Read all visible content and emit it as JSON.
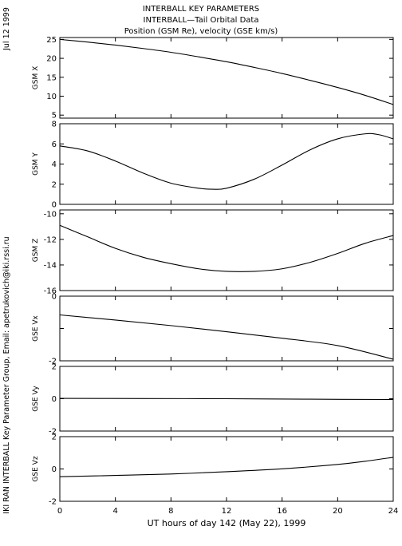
{
  "header": {
    "line1": "INTERBALL KEY PARAMETERS",
    "line2": "INTERBALL—Tail Orbital Data",
    "line3": "Position (GSM Re), velocity (GSE km/s)"
  },
  "side": {
    "date": "Jul 12 1999",
    "credit": "IKI RAN INTERBALL Key Parameter Group, Email: apetrukovich@iki.rssi.ru"
  },
  "chart_data": {
    "type": "line",
    "xlabel": "UT hours of day 142 (May 22), 1999",
    "xlim": [
      0,
      24
    ],
    "xticks": [
      "0",
      "4",
      "8",
      "12",
      "16",
      "20",
      "24"
    ],
    "panels": [
      {
        "ylabel": "GSM X",
        "ylim": [
          4.2,
          25.5
        ],
        "yticks": [
          "25",
          "20",
          "15",
          "10",
          "5"
        ],
        "x": [
          0,
          2,
          4,
          6,
          8,
          10,
          12,
          14,
          16,
          18,
          20,
          22,
          24
        ],
        "y": [
          25.0,
          24.3,
          23.5,
          22.6,
          21.6,
          20.4,
          19.1,
          17.6,
          16.0,
          14.2,
          12.3,
          10.2,
          7.8
        ]
      },
      {
        "ylabel": "GSM Y",
        "ylim": [
          0,
          8
        ],
        "yticks": [
          "8",
          "6",
          "4",
          "2",
          "0"
        ],
        "x": [
          0,
          2,
          4,
          6,
          8,
          10,
          11,
          12,
          14,
          16,
          18,
          20,
          22,
          23,
          24
        ],
        "y": [
          5.8,
          5.3,
          4.3,
          3.1,
          2.1,
          1.6,
          1.5,
          1.6,
          2.5,
          3.9,
          5.4,
          6.5,
          7.0,
          6.9,
          6.5
        ]
      },
      {
        "ylabel": "GSM Z",
        "ylim": [
          -16,
          -9.7
        ],
        "yticks": [
          "-10",
          "-12",
          "-14",
          "-16"
        ],
        "x": [
          0,
          2,
          4,
          6,
          8,
          10,
          12,
          14,
          16,
          18,
          20,
          22,
          24
        ],
        "y": [
          -10.9,
          -11.8,
          -12.7,
          -13.4,
          -13.9,
          -14.3,
          -14.5,
          -14.5,
          -14.3,
          -13.8,
          -13.1,
          -12.3,
          -11.7
        ]
      },
      {
        "ylabel": "GSE Vx",
        "ylim": [
          -2,
          0
        ],
        "yticks": [
          "0",
          "",
          "-2"
        ],
        "x": [
          0,
          4,
          8,
          12,
          16,
          20,
          24
        ],
        "y": [
          -0.58,
          -0.74,
          -0.91,
          -1.1,
          -1.3,
          -1.53,
          -1.95
        ]
      },
      {
        "ylabel": "GSE Vy",
        "ylim": [
          -2,
          2
        ],
        "yticks": [
          "2",
          "0",
          "-2"
        ],
        "x": [
          0,
          6,
          12,
          18,
          24
        ],
        "y": [
          0.02,
          0.01,
          0.0,
          -0.03,
          -0.05
        ]
      },
      {
        "ylabel": "GSE Vz",
        "ylim": [
          -2,
          2
        ],
        "yticks": [
          "2",
          "0",
          "-2"
        ],
        "x": [
          0,
          4,
          8,
          12,
          16,
          20,
          22,
          24
        ],
        "y": [
          -0.48,
          -0.4,
          -0.31,
          -0.17,
          0.01,
          0.28,
          0.48,
          0.72
        ]
      }
    ]
  },
  "colors": {
    "ink": "#000000",
    "background": "#ffffff"
  }
}
